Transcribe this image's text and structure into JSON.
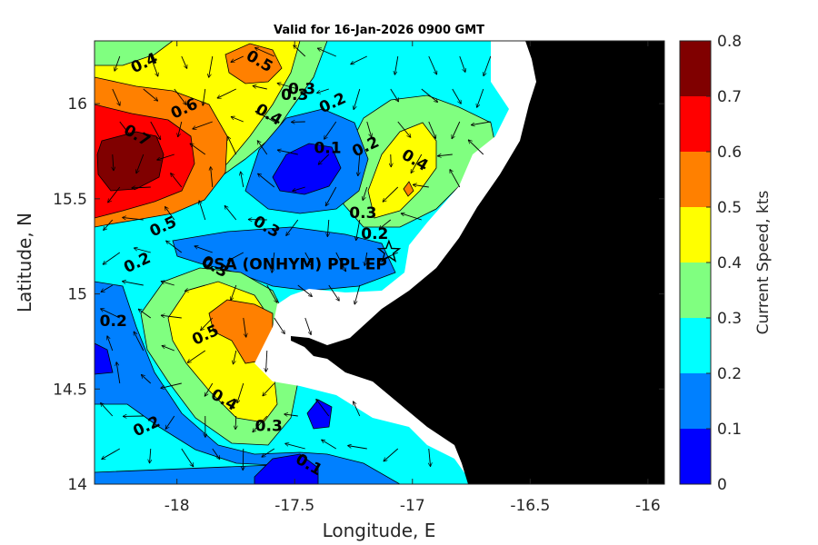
{
  "chart_data": {
    "type": "heatmap",
    "title": "Valid for 16-Jan-2026 0900 GMT",
    "xlabel": "Longitude, E",
    "ylabel": "Latitude, N",
    "xlim": [
      -18.35,
      -15.93
    ],
    "ylim": [
      14.0,
      16.33
    ],
    "xticks": [
      "-18",
      "-17.5",
      "-17",
      "-16.5",
      "-16"
    ],
    "xtick_values": [
      -18,
      -17.5,
      -17,
      -16.5,
      -16
    ],
    "yticks": [
      "14",
      "14.5",
      "15",
      "15.5",
      "16"
    ],
    "ytick_values": [
      14,
      14.5,
      15,
      15.5,
      16
    ],
    "colorbar": {
      "label": "Current Speed, kts",
      "levels": [
        "0",
        "0.1",
        "0.2",
        "0.3",
        "0.4",
        "0.5",
        "0.6",
        "0.7",
        "0.8"
      ],
      "level_values": [
        0,
        0.1,
        0.2,
        0.3,
        0.4,
        0.5,
        0.6,
        0.7,
        0.8
      ],
      "colors": [
        "#0000ff",
        "#0080ff",
        "#00ffff",
        "#80ff80",
        "#ffff00",
        "#ff8000",
        "#ff0000",
        "#800000"
      ]
    },
    "land_color": "#000000",
    "nodata_color": "#ffffff",
    "marker": {
      "symbol": "star",
      "label": "CSA (ONHYM) PPL EP",
      "lon": -17.1,
      "lat": 15.22
    },
    "contour_labels": [
      {
        "text": "0.4",
        "lon": -18.13,
        "lat": 16.19
      },
      {
        "text": "0.5",
        "lon": -17.66,
        "lat": 16.2
      },
      {
        "text": "0.3",
        "lon": -17.47,
        "lat": 16.05
      },
      {
        "text": "0.2",
        "lon": -17.33,
        "lat": 15.98
      },
      {
        "text": "0.4",
        "lon": -17.62,
        "lat": 15.92
      },
      {
        "text": "0.3",
        "lon": -17.5,
        "lat": 16.02
      },
      {
        "text": "0.6",
        "lon": -17.96,
        "lat": 15.95
      },
      {
        "text": "0.7",
        "lon": -18.18,
        "lat": 15.81
      },
      {
        "text": "0.1",
        "lon": -17.36,
        "lat": 15.74
      },
      {
        "text": "0.2",
        "lon": -17.19,
        "lat": 15.75
      },
      {
        "text": "0.4",
        "lon": -17.0,
        "lat": 15.68
      },
      {
        "text": "0.3",
        "lon": -17.21,
        "lat": 15.4
      },
      {
        "text": "0.5",
        "lon": -18.05,
        "lat": 15.33
      },
      {
        "text": "0.3",
        "lon": -17.63,
        "lat": 15.33
      },
      {
        "text": "0.2",
        "lon": -17.16,
        "lat": 15.29
      },
      {
        "text": "0.2",
        "lon": -18.16,
        "lat": 15.14
      },
      {
        "text": "0.3",
        "lon": -17.85,
        "lat": 15.12
      },
      {
        "text": "0.2",
        "lon": -18.27,
        "lat": 14.83
      },
      {
        "text": "0.5",
        "lon": -17.87,
        "lat": 14.76
      },
      {
        "text": "0.4",
        "lon": -17.81,
        "lat": 14.42
      },
      {
        "text": "0.3",
        "lon": -17.61,
        "lat": 14.28
      },
      {
        "text": "0.2",
        "lon": -18.12,
        "lat": 14.28
      },
      {
        "text": "0.1",
        "lon": -17.45,
        "lat": 14.08
      }
    ]
  }
}
